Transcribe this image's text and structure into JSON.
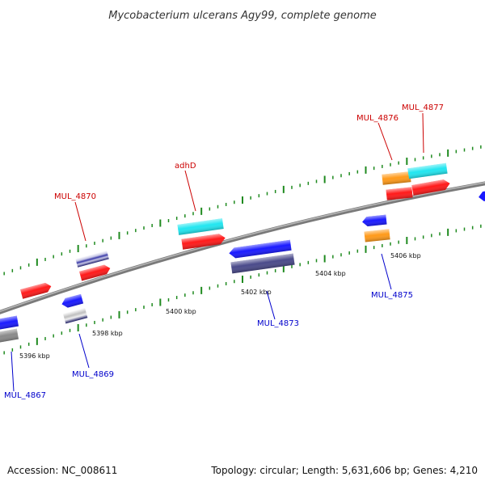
{
  "title": "Mycobacterium ulcerans Agy99, complete genome",
  "footer": {
    "accession": "Accession: NC_008611",
    "summary": "Topology: circular; Length: 5,631,606 bp; Genes: 4,210"
  },
  "colors": {
    "red": "#ff1a1a",
    "blue": "#1a1aff",
    "cyan": "#22e6f0",
    "orange": "#ff9a1a",
    "navy": "#4a4a8a",
    "gray": "#8a8a8a",
    "backbone": "#8c8c8c",
    "tick": "#1f8a1f",
    "label_red": "#cc0000",
    "label_blue": "#0000cc"
  },
  "kbp_labels": [
    "5396 kbp",
    "5398 kbp",
    "5400 kbp",
    "5402 kbp",
    "5404 kbp",
    "5406 kbp"
  ],
  "gene_labels": {
    "mul4867": "MUL_4867",
    "mul4869": "MUL_4869",
    "mul4870": "MUL_4870",
    "adhD": "adhD",
    "mul4873": "MUL_4873",
    "mul4875": "MUL_4875",
    "mul4876": "MUL_4876",
    "mul4877": "MUL_4877"
  }
}
